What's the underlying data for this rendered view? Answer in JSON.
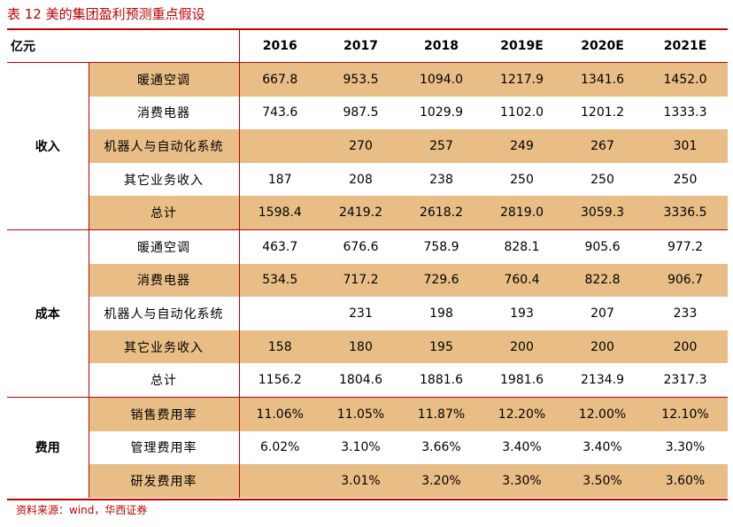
{
  "title": "表 12 美的集团盈利预测重点假设",
  "unit_label": "亿元",
  "years": [
    "2016",
    "2017",
    "2018",
    "2019E",
    "2020E",
    "2021E"
  ],
  "groups": [
    {
      "name": "收入",
      "rows": [
        {
          "label": "暖通空调",
          "values": [
            "667.8",
            "953.5",
            "1094.0",
            "1217.9",
            "1341.6",
            "1452.0"
          ]
        },
        {
          "label": "消费电器",
          "values": [
            "743.6",
            "987.5",
            "1029.9",
            "1102.0",
            "1201.2",
            "1333.3"
          ]
        },
        {
          "label": "机器人与自动化系统",
          "values": [
            "",
            "270",
            "257",
            "249",
            "267",
            "301"
          ]
        },
        {
          "label": "其它业务收入",
          "values": [
            "187",
            "208",
            "238",
            "250",
            "250",
            "250"
          ]
        },
        {
          "label": "总计",
          "values": [
            "1598.4",
            "2419.2",
            "2618.2",
            "2819.0",
            "3059.3",
            "3336.5"
          ]
        }
      ]
    },
    {
      "name": "成本",
      "rows": [
        {
          "label": "暖通空调",
          "values": [
            "463.7",
            "676.6",
            "758.9",
            "828.1",
            "905.6",
            "977.2"
          ]
        },
        {
          "label": "消费电器",
          "values": [
            "534.5",
            "717.2",
            "729.6",
            "760.4",
            "822.8",
            "906.7"
          ]
        },
        {
          "label": "机器人与自动化系统",
          "values": [
            "",
            "231",
            "198",
            "193",
            "207",
            "233"
          ]
        },
        {
          "label": "其它业务收入",
          "values": [
            "158",
            "180",
            "195",
            "200",
            "200",
            "200"
          ]
        },
        {
          "label": "总计",
          "values": [
            "1156.2",
            "1804.6",
            "1881.6",
            "1981.6",
            "2134.9",
            "2317.3"
          ]
        }
      ]
    },
    {
      "name": "费用",
      "rows": [
        {
          "label": "销售费用率",
          "values": [
            "11.06%",
            "11.05%",
            "11.87%",
            "12.20%",
            "12.00%",
            "12.10%"
          ]
        },
        {
          "label": "管理费用率",
          "values": [
            "6.02%",
            "3.10%",
            "3.66%",
            "3.40%",
            "3.40%",
            "3.30%"
          ]
        },
        {
          "label": "研发费用率",
          "values": [
            "",
            "3.01%",
            "3.20%",
            "3.30%",
            "3.50%",
            "3.60%"
          ]
        }
      ]
    }
  ],
  "source": "资料来源：wind，华西证券",
  "colors": {
    "accent": "#c00000",
    "highlight": "#e8be86"
  }
}
